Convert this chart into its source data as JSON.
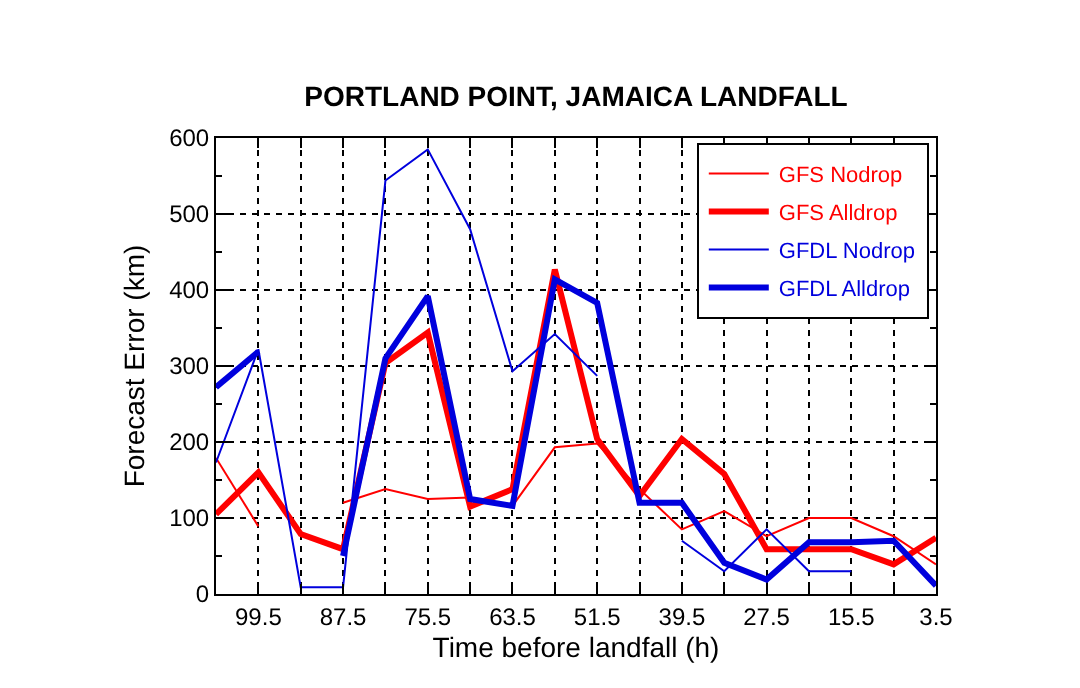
{
  "chart_data": {
    "type": "line",
    "title": "PORTLAND POINT, JAMAICA LANDFALL",
    "xlabel": "Time before landfall (h)",
    "ylabel": "Forecast Error (km)",
    "x": [
      105.5,
      99.5,
      93.5,
      87.5,
      81.5,
      75.5,
      69.5,
      63.5,
      57.5,
      51.5,
      45.5,
      39.5,
      33.5,
      27.5,
      21.5,
      15.5,
      9.5,
      3.5
    ],
    "series": [
      {
        "name": "GFS Nodrop",
        "color": "#ff0000",
        "values": [
          179,
          89,
          null,
          120,
          138,
          125,
          127,
          116,
          193,
          198,
          138,
          85,
          109,
          76,
          100,
          100,
          76,
          39
        ]
      },
      {
        "name": "GFS Alldrop",
        "color": "#ff0000",
        "values": [
          105,
          160,
          79,
          59,
          304,
          344,
          115,
          138,
          427,
          204,
          129,
          204,
          158,
          59,
          59,
          59,
          39,
          74
        ]
      },
      {
        "name": "GFDL Nodrop",
        "color": "#0000dd",
        "values": [
          173,
          322,
          9,
          9,
          544,
          585,
          480,
          293,
          342,
          287,
          null,
          70,
          30,
          85,
          30,
          30,
          null,
          null
        ]
      },
      {
        "name": "GFDL Alldrop",
        "color": "#0000dd",
        "values": [
          272,
          319,
          null,
          50,
          310,
          392,
          125,
          116,
          414,
          383,
          120,
          120,
          41,
          19,
          68,
          68,
          70,
          11
        ]
      }
    ],
    "xlim": [
      105.5,
      3.5
    ],
    "xticks": [
      {
        "value": 105.5,
        "label": null
      },
      99.5,
      {
        "value": 93.5,
        "label": null
      },
      87.5,
      {
        "value": 81.5,
        "label": null
      },
      75.5,
      {
        "value": 69.5,
        "label": null
      },
      63.5,
      {
        "value": 57.5,
        "label": null
      },
      51.5,
      {
        "value": 45.5,
        "label": null
      },
      39.5,
      {
        "value": 33.5,
        "label": null
      },
      27.5,
      {
        "value": 21.5,
        "label": null
      },
      15.5,
      {
        "value": 9.5,
        "label": null
      },
      3.5
    ],
    "ylim": [
      0,
      600
    ],
    "yticks": [
      0,
      100,
      200,
      300,
      400,
      500,
      600
    ],
    "grid": true,
    "legend": "top right",
    "marker": "none",
    "line_style": "solid"
  }
}
